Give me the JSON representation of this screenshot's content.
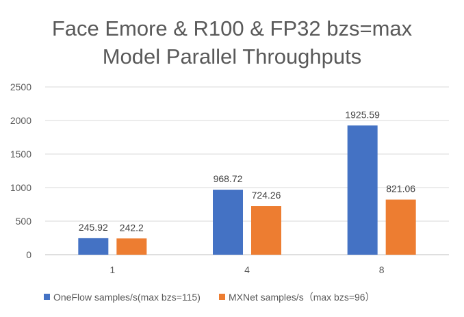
{
  "chart_data": {
    "type": "bar",
    "title_lines": [
      "Face Emore & R100 & FP32 bzs=max",
      "Model Parallel Throughputs"
    ],
    "categories": [
      "1",
      "4",
      "8"
    ],
    "series": [
      {
        "name": "OneFlow samples/s(max bzs=115)",
        "color": "#4472C4",
        "values": [
          245.92,
          968.72,
          1925.59
        ],
        "labels": [
          "245.92",
          "968.72",
          "1925.59"
        ]
      },
      {
        "name": "MXNet samples/s（max bzs=96）",
        "color": "#ED7D31",
        "values": [
          242.2,
          724.26,
          821.06
        ],
        "labels": [
          "242.2",
          "724.26",
          "821.06"
        ]
      }
    ],
    "ylim": [
      0,
      2500
    ],
    "yticks": [
      "0",
      "500",
      "1000",
      "1500",
      "2000",
      "2500"
    ],
    "grid": true,
    "legend_position": "bottom"
  }
}
